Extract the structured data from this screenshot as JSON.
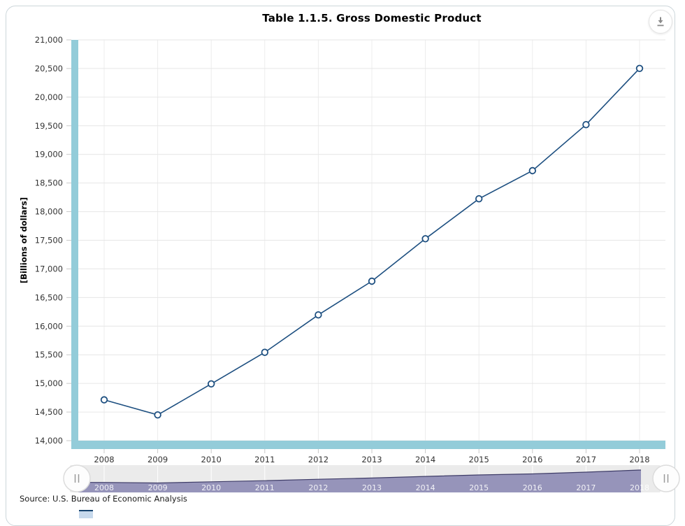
{
  "source_note": "Source: U.S. Bureau of Economic Analysis",
  "toolbar": {
    "download_icon": "download-arrow-circle"
  },
  "chart_data": {
    "type": "line",
    "title": "Table 1.1.5. Gross Domestic Product",
    "xlabel": "",
    "ylabel": "[Billions of dollars]",
    "categories": [
      "2008",
      "2009",
      "2010",
      "2011",
      "2012",
      "2013",
      "2014",
      "2015",
      "2016",
      "2017",
      "2018"
    ],
    "series": [
      {
        "name": "Gross Domestic Product",
        "values": [
          14713,
          14449,
          14992,
          15543,
          16197,
          16785,
          17527,
          18225,
          18715,
          19519,
          20501
        ]
      }
    ],
    "ylim": [
      14000,
      21000
    ],
    "ytick_step": 500,
    "ytick_labels": [
      "14,000",
      "14,500",
      "15,000",
      "15,500",
      "16,000",
      "16,500",
      "17,000",
      "17,500",
      "18,000",
      "18,500",
      "19,000",
      "19,500",
      "20,000",
      "20,500",
      "21,000"
    ],
    "grid": true,
    "legend_position": "none",
    "marker": "open-circle",
    "colors": {
      "line": "#1d4f80",
      "marker_fill": "#ffffff",
      "axis_band": "#93ccd9",
      "gridline": "#e6e6e6",
      "tick": "#c9c9c9",
      "label": "#333333"
    }
  },
  "navigator": {
    "labels": [
      "2008",
      "2009",
      "2010",
      "2011",
      "2012",
      "2013",
      "2014",
      "2015",
      "2016",
      "2017",
      "2018"
    ],
    "handle_glyph": "||",
    "background": "#ebebeb",
    "area_fill": "#918fb7",
    "area_outline": "#3f3d68"
  }
}
